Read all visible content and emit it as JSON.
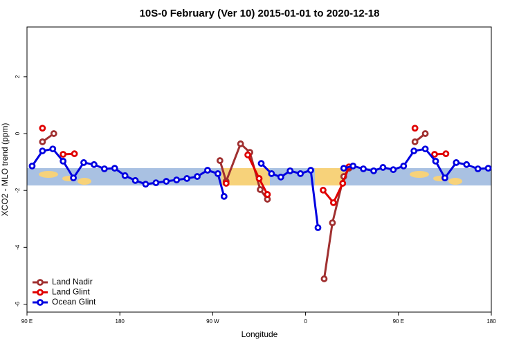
{
  "chart_data": {
    "type": "line",
    "title": "10S-0 February (Ver 10)   2015-01-01 to 2020-12-18",
    "x_label": "Longitude",
    "y_label": "XCO2 - MLO trend (ppm)",
    "xlim": [
      90,
      540
    ],
    "ylim": [
      -6.28,
      3.75
    ],
    "xticks": [
      {
        "value": 90,
        "label": "90 E"
      },
      180,
      {
        "value": 270,
        "label": "90 W"
      },
      {
        "value": 360,
        "label": "0"
      },
      {
        "value": 450,
        "label": "90 E"
      },
      {
        "value": 540,
        "label": "180"
      }
    ],
    "yticks": [
      -6,
      -4,
      -2,
      0,
      2
    ],
    "legend": "bottom-left",
    "series": [
      {
        "name": "Land Nadir",
        "color": "#a03030",
        "x": [
          105,
          116,
          null,
          277,
          283,
          297,
          306,
          316,
          323,
          null,
          378,
          386,
          397,
          402,
          null,
          466,
          476
        ],
        "values": [
          -0.29,
          0,
          null,
          -0.95,
          -1.68,
          -0.36,
          -0.66,
          -1.97,
          -2.31,
          null,
          -5.11,
          -3.14,
          -1.51,
          -1.22,
          null,
          -0.29,
          0
        ]
      },
      {
        "name": "Land Glint",
        "color": "#e00000",
        "x": [
          105,
          null,
          125,
          136,
          null,
          283,
          null,
          304,
          315,
          323,
          null,
          377,
          387,
          396,
          402,
          null,
          466,
          null,
          485,
          496
        ],
        "values": [
          0.19,
          null,
          -0.73,
          -0.71,
          null,
          -1.75,
          null,
          -0.75,
          -1.58,
          -2.14,
          null,
          -1.99,
          -2.43,
          -1.75,
          -1.17,
          null,
          0.19,
          null,
          -0.73,
          -0.71
        ]
      },
      {
        "name": "Ocean Glint",
        "color": "#0000e0",
        "x": [
          95,
          105,
          115,
          125,
          135,
          145,
          155,
          165,
          175,
          185,
          195,
          205,
          215,
          225,
          235,
          245,
          255,
          265,
          275,
          281,
          null,
          317,
          327,
          336,
          345,
          355,
          365,
          372,
          null,
          397,
          406,
          416,
          426,
          435,
          445,
          455,
          465,
          476,
          486,
          495,
          506,
          516,
          527,
          537
        ],
        "values": [
          -1.14,
          -0.61,
          -0.54,
          -0.97,
          -1.56,
          -1.02,
          -1.09,
          -1.24,
          -1.22,
          -1.48,
          -1.65,
          -1.78,
          -1.73,
          -1.68,
          -1.63,
          -1.58,
          -1.51,
          -1.29,
          -1.41,
          -2.21,
          null,
          -1.05,
          -1.41,
          -1.53,
          -1.31,
          -1.41,
          -1.29,
          -3.31,
          null,
          -1.22,
          -1.14,
          -1.24,
          -1.31,
          -1.19,
          -1.27,
          -1.14,
          -0.61,
          -0.54,
          -0.97,
          -1.56,
          -1.02,
          -1.09,
          -1.24,
          -1.22
        ]
      }
    ]
  }
}
